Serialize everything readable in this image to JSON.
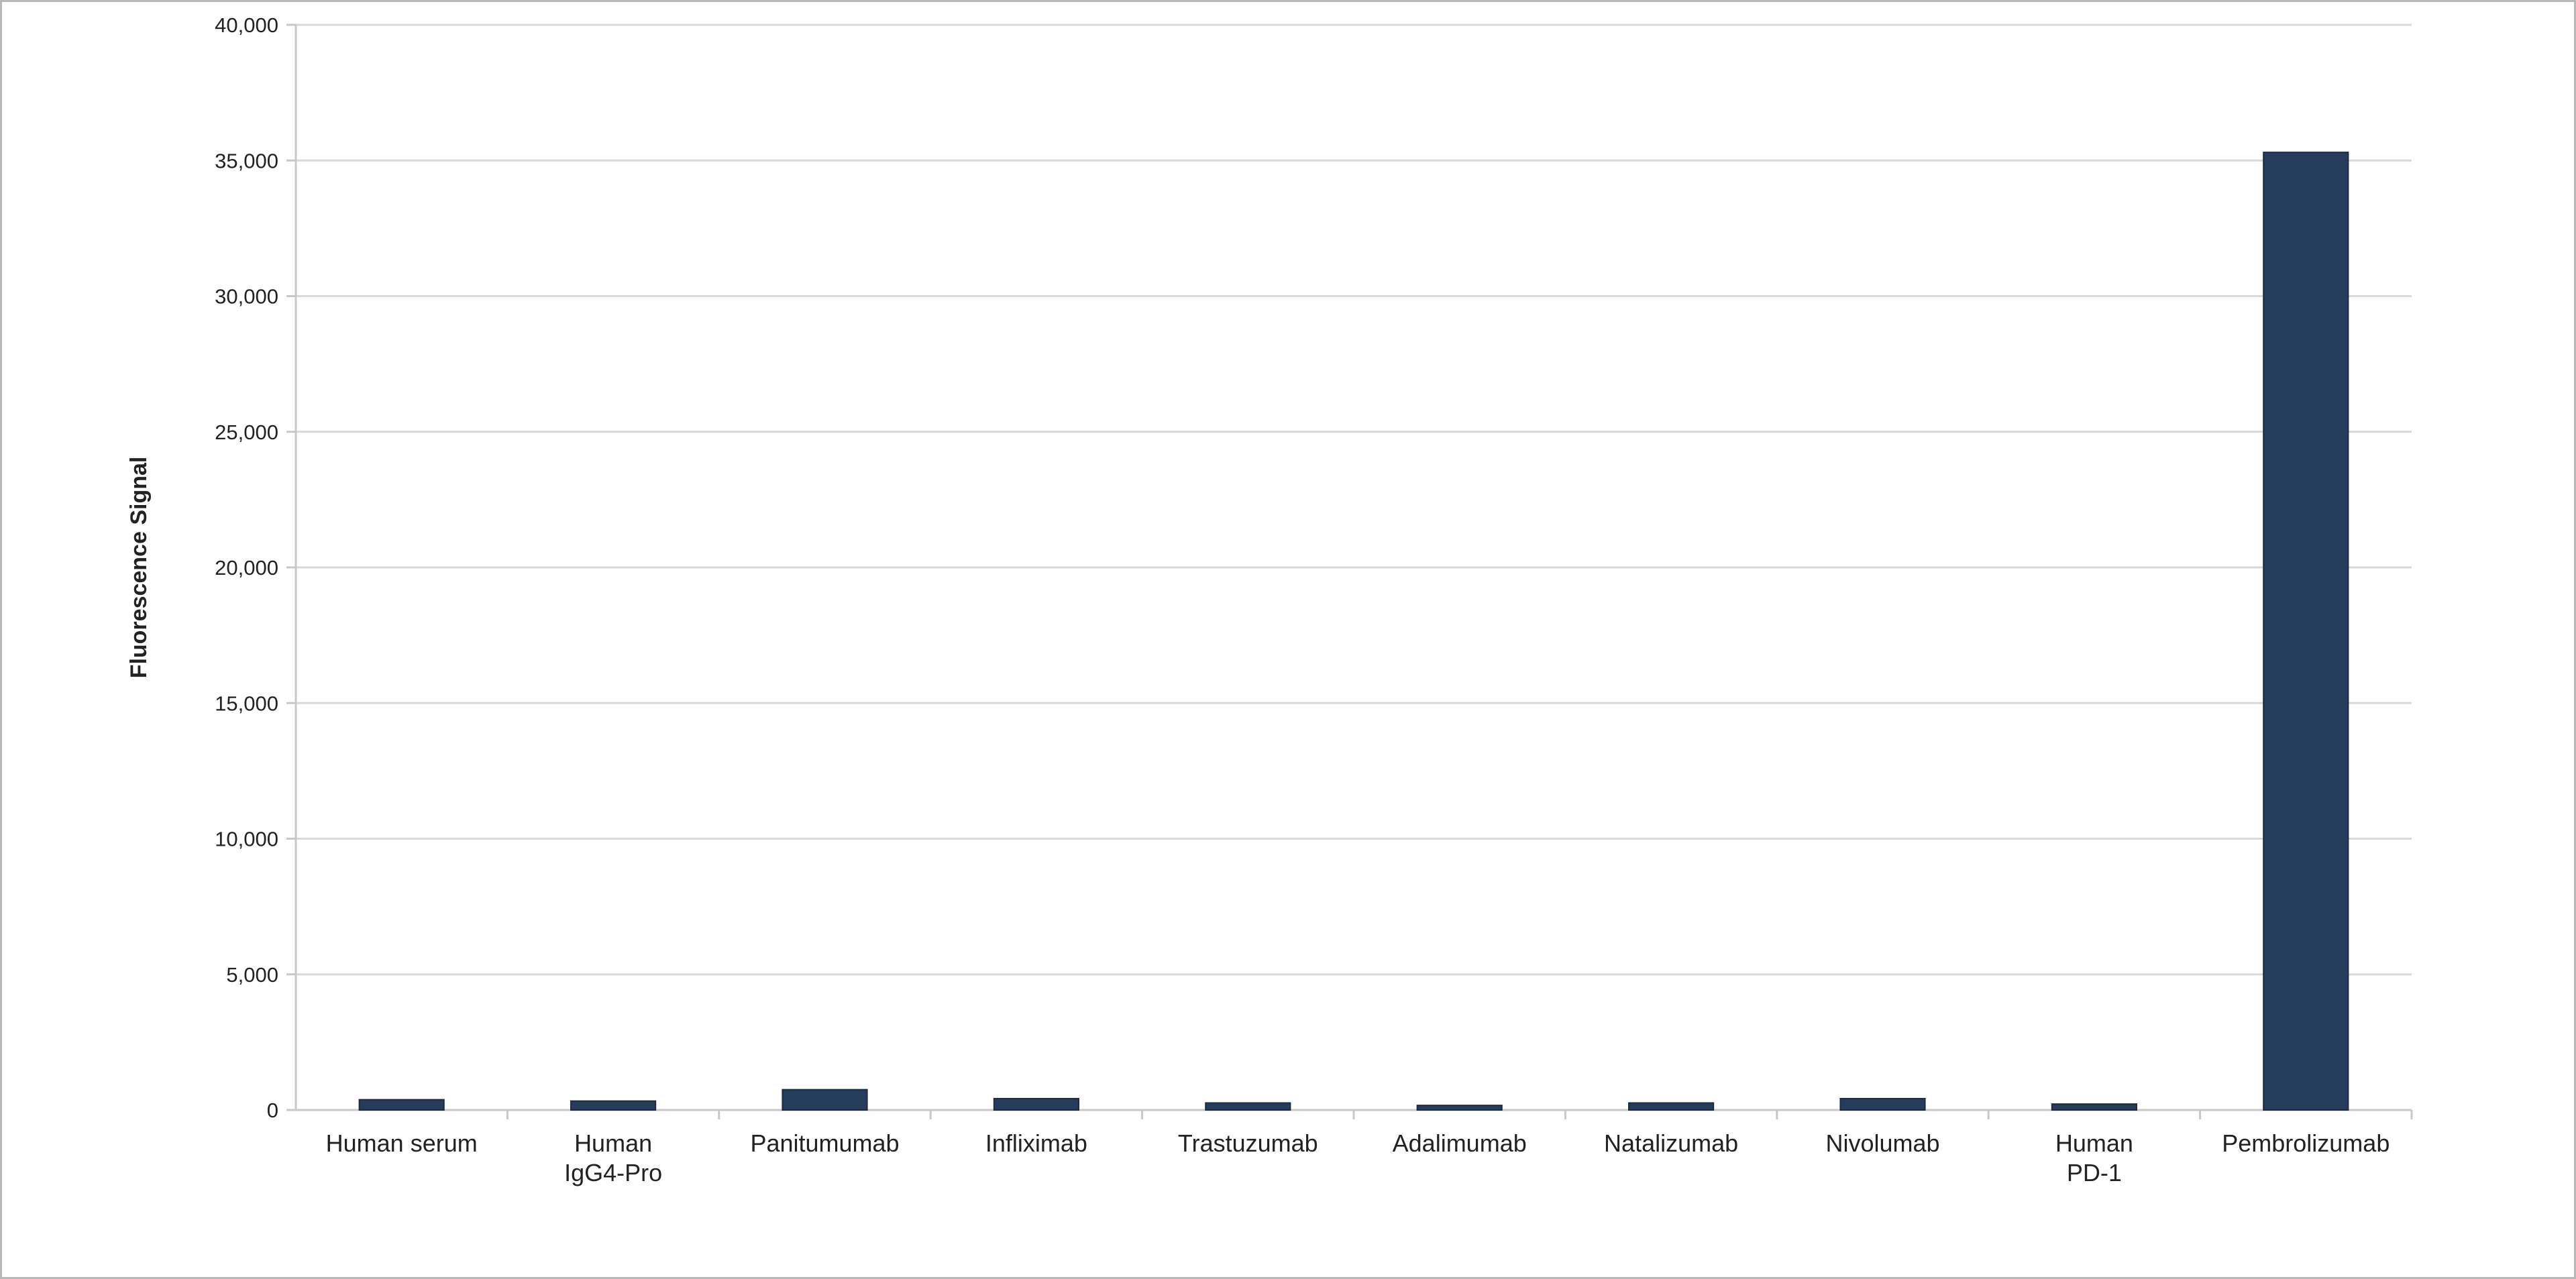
{
  "chart_data": {
    "type": "bar",
    "title": "",
    "xlabel": "",
    "ylabel": "Fluorescence Signal",
    "ylim": [
      0,
      40000
    ],
    "yticks": [
      "0",
      "5,000",
      "10,000",
      "15,000",
      "20,000",
      "25,000",
      "30,000",
      "35,000",
      "40,000"
    ],
    "grid": true,
    "legend": "none",
    "bar_color": "#253d5b",
    "categories": [
      [
        "Human serum"
      ],
      [
        "Human",
        "IgG4-Pro"
      ],
      [
        "Panitumumab"
      ],
      [
        "Infliximab"
      ],
      [
        "Trastuzumab"
      ],
      [
        "Adalimumab"
      ],
      [
        "Natalizumab"
      ],
      [
        "Nivolumab"
      ],
      [
        "Human",
        "PD-1"
      ],
      [
        "Pembrolizumab"
      ]
    ],
    "values": [
      380,
      330,
      750,
      420,
      260,
      170,
      260,
      420,
      220,
      35300
    ]
  }
}
